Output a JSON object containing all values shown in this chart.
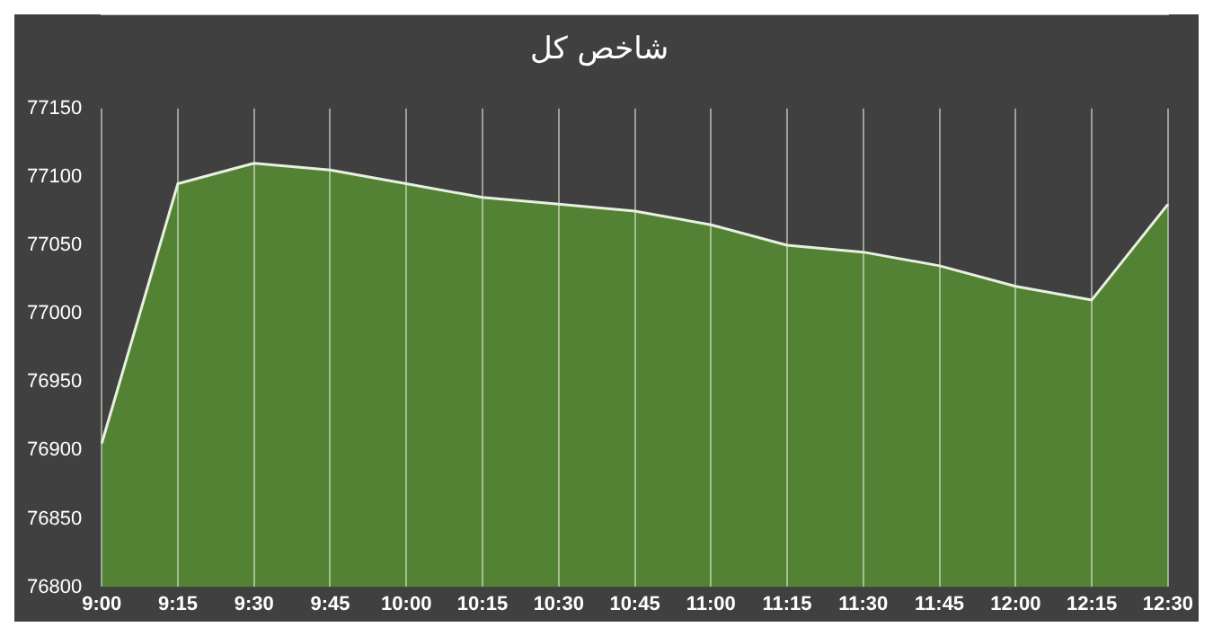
{
  "chart_data": {
    "type": "area",
    "title": "شاخص کل",
    "categories": [
      "9:00",
      "9:15",
      "9:30",
      "9:45",
      "10:00",
      "10:15",
      "10:30",
      "10:45",
      "11:00",
      "11:15",
      "11:30",
      "11:45",
      "12:00",
      "12:15",
      "12:30"
    ],
    "series": [
      {
        "color": "#548235",
        "values": [
          76905,
          77095,
          77110,
          77105,
          77095,
          77085,
          77080,
          77075,
          77065,
          77050,
          77045,
          77035,
          77020,
          77010,
          77080
        ]
      }
    ],
    "ylim": [
      76800,
      77150
    ],
    "yticks": [
      76800,
      76850,
      76900,
      76950,
      77000,
      77050,
      77100,
      77150
    ],
    "grid": "x",
    "legend": false
  }
}
